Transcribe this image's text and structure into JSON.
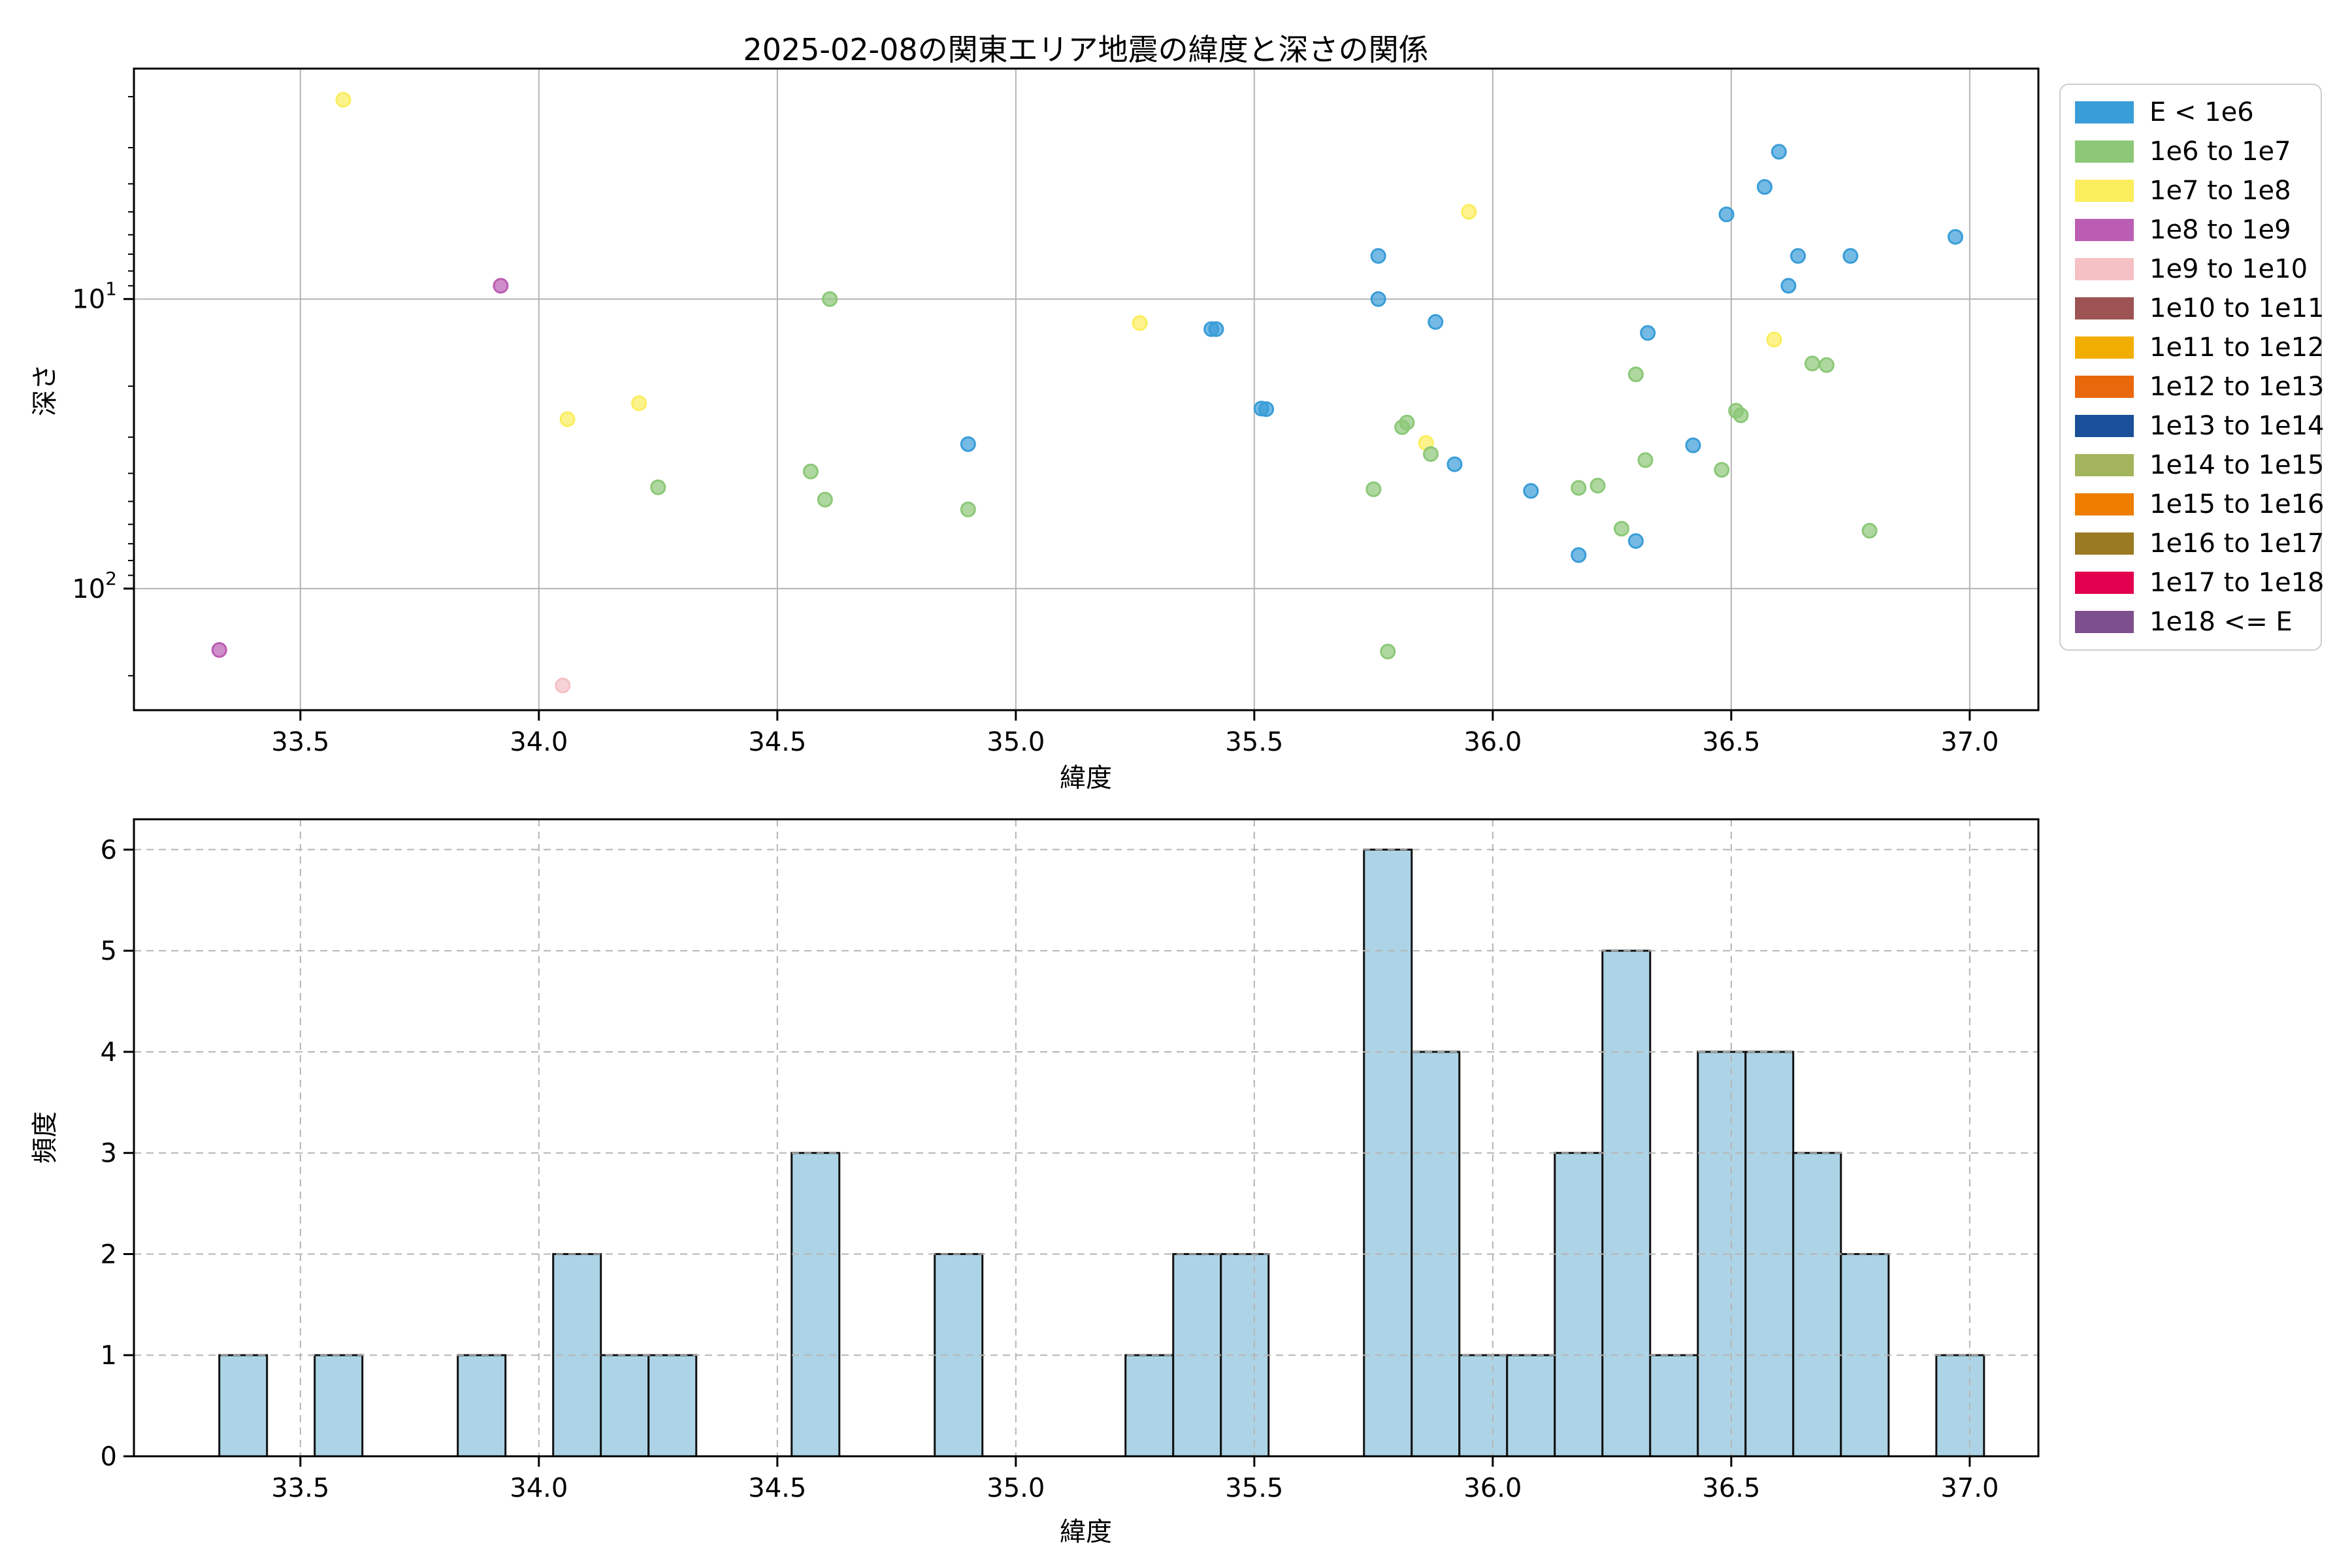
{
  "chart_data": [
    {
      "type": "scatter",
      "title": "2025-02-08の関東エリア地震の緯度と深さの関係",
      "xlabel": "緯度",
      "ylabel": "深さ",
      "x_axis": {
        "min": 33.151,
        "max": 37.144,
        "ticks": [
          {
            "v": 33.5,
            "label": "33.5"
          },
          {
            "v": 34.0,
            "label": "34.0"
          },
          {
            "v": 34.5,
            "label": "34.5"
          },
          {
            "v": 35.0,
            "label": "35.0"
          },
          {
            "v": 35.5,
            "label": "35.5"
          },
          {
            "v": 36.0,
            "label": "36.0"
          },
          {
            "v": 36.5,
            "label": "36.5"
          },
          {
            "v": 37.0,
            "label": "37.0"
          }
        ]
      },
      "y_axis": {
        "scale": "log",
        "inverted": true,
        "top_value": 1.6,
        "bottom_value": 263.0,
        "major_ticks": [
          {
            "v": 10,
            "base": "10",
            "exp": "1"
          },
          {
            "v": 100,
            "base": "10",
            "exp": "2"
          }
        ],
        "minor_ticks": [
          2,
          3,
          4,
          5,
          6,
          7,
          8,
          9,
          20,
          30,
          40,
          50,
          60,
          70,
          80,
          90,
          200
        ]
      },
      "grid": {
        "style": "solid",
        "color": "#b5b5b5"
      },
      "marker": {
        "radius": 10.5,
        "fill_opacity": 0.7,
        "edge_width": 3
      },
      "series": [
        {
          "name": "E < 1e6",
          "color": "#399dd8",
          "points": [
            [
              34.9,
              31.7
            ],
            [
              35.41,
              12.7
            ],
            [
              35.42,
              12.7
            ],
            [
              35.515,
              23.9
            ],
            [
              35.525,
              24.0
            ],
            [
              35.76,
              7.1
            ],
            [
              35.76,
              10.0
            ],
            [
              35.88,
              12.0
            ],
            [
              35.92,
              37.2
            ],
            [
              36.08,
              46.0
            ],
            [
              36.18,
              76.6
            ],
            [
              36.3,
              68.5
            ],
            [
              36.325,
              13.1
            ],
            [
              36.42,
              32.0
            ],
            [
              36.49,
              5.1
            ],
            [
              36.57,
              4.1
            ],
            [
              36.6,
              3.1
            ],
            [
              36.62,
              9.0
            ],
            [
              36.64,
              7.1
            ],
            [
              36.75,
              7.1
            ],
            [
              36.97,
              6.1
            ]
          ]
        },
        {
          "name": "1e6 to 1e7",
          "color": "#8cc878",
          "points": [
            [
              34.25,
              44.7
            ],
            [
              34.57,
              39.4
            ],
            [
              34.6,
              49.3
            ],
            [
              34.61,
              10.0
            ],
            [
              34.9,
              53.3
            ],
            [
              35.75,
              45.4
            ],
            [
              35.78,
              165.0
            ],
            [
              35.81,
              27.7
            ],
            [
              35.82,
              26.7
            ],
            [
              35.87,
              34.3
            ],
            [
              36.18,
              44.9
            ],
            [
              36.22,
              44.1
            ],
            [
              36.27,
              62.1
            ],
            [
              36.3,
              18.2
            ],
            [
              36.32,
              36.0
            ],
            [
              36.48,
              38.9
            ],
            [
              36.51,
              24.3
            ],
            [
              36.52,
              25.2
            ],
            [
              36.67,
              16.7
            ],
            [
              36.7,
              16.9
            ],
            [
              36.79,
              63.1
            ]
          ]
        },
        {
          "name": "1e7 to 1e8",
          "color": "#fbee5d",
          "points": [
            [
              33.59,
              2.05
            ],
            [
              34.06,
              26.0
            ],
            [
              34.21,
              22.9
            ],
            [
              35.26,
              12.1
            ],
            [
              35.86,
              31.4
            ],
            [
              35.95,
              5.0
            ],
            [
              36.59,
              13.8
            ]
          ]
        },
        {
          "name": "1e8 to 1e9",
          "color": "#bb5eb3",
          "points": [
            [
              33.33,
              163.0
            ],
            [
              33.92,
              9.0
            ]
          ]
        },
        {
          "name": "1e9 to 1e10",
          "color": "#f5c1c4",
          "points": [
            [
              34.05,
              216.0
            ]
          ]
        }
      ],
      "legend": {
        "position": "outside-upper-right",
        "entries": [
          {
            "label": "E < 1e6",
            "color": "#399dd8"
          },
          {
            "label": "1e6 to 1e7",
            "color": "#8cc878"
          },
          {
            "label": "1e7 to 1e8",
            "color": "#fbee5d"
          },
          {
            "label": "1e8 to 1e9",
            "color": "#bb5eb3"
          },
          {
            "label": "1e9 to 1e10",
            "color": "#f5c1c4"
          },
          {
            "label": "1e10 to 1e11",
            "color": "#9d5353"
          },
          {
            "label": "1e11 to 1e12",
            "color": "#f2ae00"
          },
          {
            "label": "1e12 to 1e13",
            "color": "#e9680b"
          },
          {
            "label": "1e13 to 1e14",
            "color": "#1a4f99"
          },
          {
            "label": "1e14 to 1e15",
            "color": "#a3b55c"
          },
          {
            "label": "1e15 to 1e16",
            "color": "#ef7d00"
          },
          {
            "label": "1e16 to 1e17",
            "color": "#9b7a24"
          },
          {
            "label": "1e17 to 1e18",
            "color": "#e2004f"
          },
          {
            "label": "1e18 <= E",
            "color": "#7e4f8e"
          }
        ]
      }
    },
    {
      "type": "bar",
      "title": "",
      "xlabel": "緯度",
      "ylabel": "頻度",
      "bin_start": 33.33,
      "bin_width": 0.1,
      "counts": [
        1,
        0,
        1,
        0,
        0,
        1,
        0,
        2,
        1,
        1,
        0,
        0,
        3,
        0,
        0,
        2,
        0,
        0,
        0,
        1,
        2,
        2,
        0,
        0,
        6,
        4,
        1,
        1,
        3,
        5,
        1,
        4,
        4,
        3,
        2,
        0,
        1
      ],
      "x_axis": {
        "min": 33.151,
        "max": 37.144,
        "ticks": [
          {
            "v": 33.5,
            "label": "33.5"
          },
          {
            "v": 34.0,
            "label": "34.0"
          },
          {
            "v": 34.5,
            "label": "34.5"
          },
          {
            "v": 35.0,
            "label": "35.0"
          },
          {
            "v": 35.5,
            "label": "35.5"
          },
          {
            "v": 36.0,
            "label": "36.0"
          },
          {
            "v": 36.5,
            "label": "36.5"
          },
          {
            "v": 37.0,
            "label": "37.0"
          }
        ]
      },
      "y_axis": {
        "min": 0,
        "max": 6.3,
        "ticks": [
          {
            "v": 0,
            "label": "0"
          },
          {
            "v": 1,
            "label": "1"
          },
          {
            "v": 2,
            "label": "2"
          },
          {
            "v": 3,
            "label": "3"
          },
          {
            "v": 4,
            "label": "4"
          },
          {
            "v": 5,
            "label": "5"
          },
          {
            "v": 6,
            "label": "6"
          }
        ]
      },
      "grid": {
        "style": "dashed",
        "color": "#b5b5b5"
      },
      "bar_style": {
        "fill": "#add4e6",
        "edge": "#111111",
        "edge_width": 3
      }
    }
  ]
}
